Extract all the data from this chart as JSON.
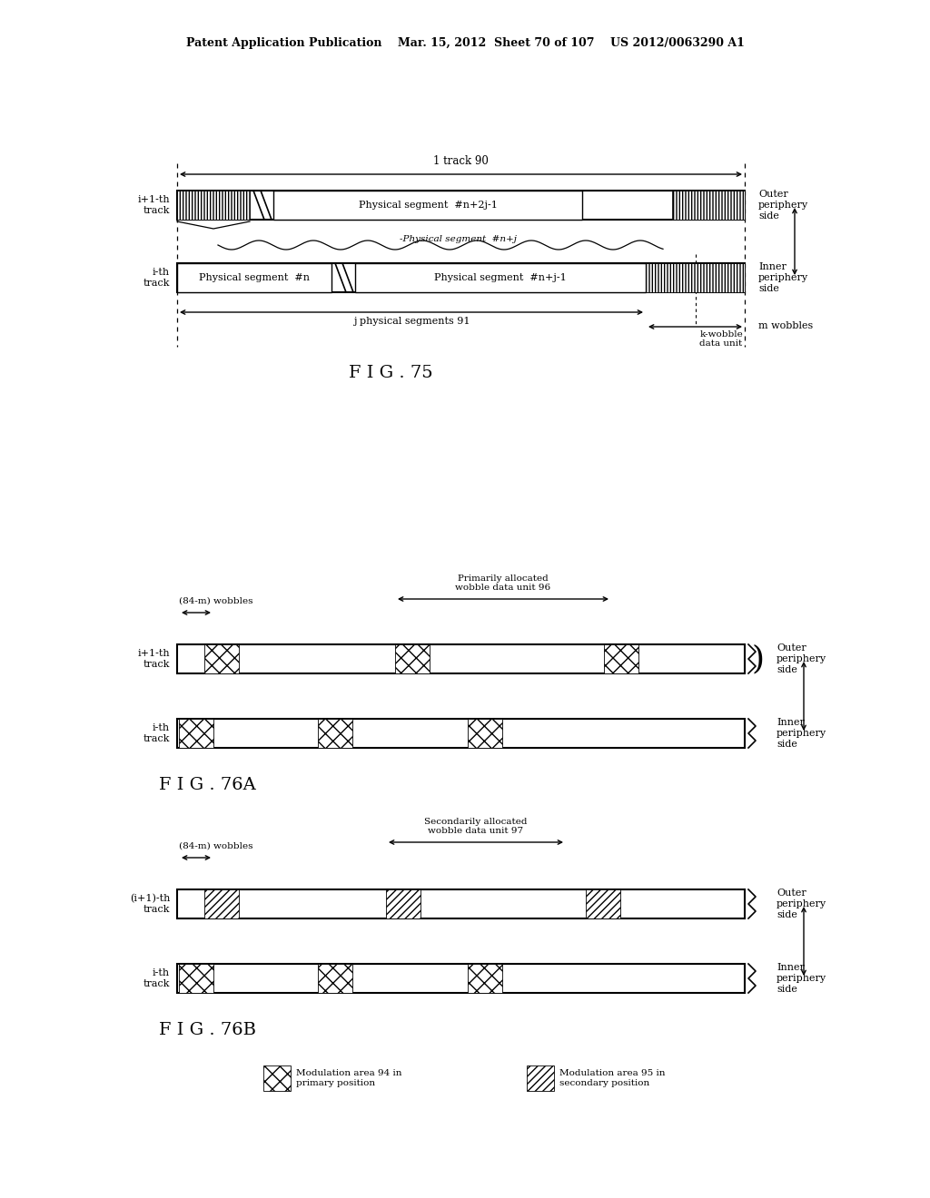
{
  "bg_color": "#ffffff",
  "header": "Patent Application Publication    Mar. 15, 2012  Sheet 70 of 107    US 2012/0063290 A1",
  "fig75_title": "F I G . 75",
  "fig76a_title": "F I G . 76A",
  "fig76b_title": "F I G . 76B",
  "seg_upper": "Physical segment  #n+2j-1",
  "seg_lower_left": "Physical segment  #n",
  "seg_lower_right": "Physical segment  #n+j-1",
  "seg_middle": "Physical segment  #n+j",
  "label_1track": "1 track 90",
  "label_j_seg": "j physical segments 91",
  "label_kwobble": "k-wobble\ndata unit",
  "label_mwobbles": "m wobbles",
  "label_outer": "Outer\nperiphery\nside",
  "label_inner": "Inner\nperiphery\nside",
  "label_84m": "(84-m) wobbles",
  "label_primary": "Primarily allocated\nwobble data unit 96",
  "label_secondary": "Secondarily allocated\nwobble data unit 97",
  "label_upper_76a": "i+1-th\ntrack",
  "label_lower_76a": "i-th\ntrack",
  "label_upper_76b": "(i+1)-th\ntrack",
  "label_lower_76b": "i-th\ntrack",
  "legend1": "Modulation area 94 in\nprimary position",
  "legend2": "Modulation area 95 in\nsecondary position"
}
